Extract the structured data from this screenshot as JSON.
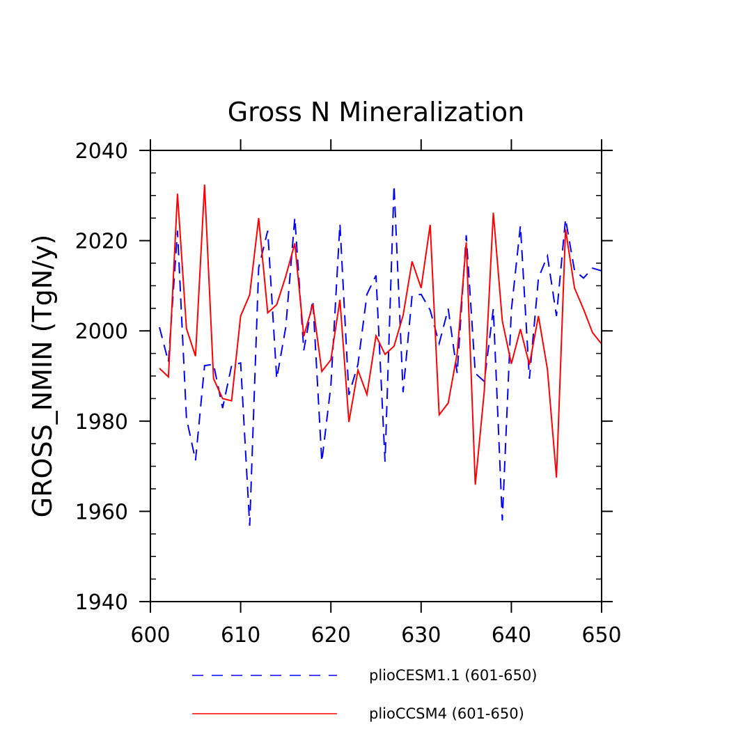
{
  "chart_data": {
    "type": "line",
    "title": "Gross N Mineralization",
    "xlabel": "",
    "ylabel": "GROSS_NMIN   (TgN/y)",
    "xlim": [
      600,
      650
    ],
    "ylim": [
      1940,
      2040
    ],
    "xticks": [
      600,
      610,
      620,
      630,
      640,
      650
    ],
    "yticks": [
      1940,
      1960,
      1980,
      2000,
      2020,
      2040
    ],
    "x": [
      601,
      602,
      603,
      604,
      605,
      606,
      607,
      608,
      609,
      610,
      611,
      612,
      613,
      614,
      615,
      616,
      617,
      618,
      619,
      620,
      621,
      622,
      623,
      624,
      625,
      626,
      627,
      628,
      629,
      630,
      631,
      632,
      633,
      634,
      635,
      636,
      637,
      638,
      639,
      640,
      641,
      642,
      643,
      644,
      645,
      646,
      647,
      648,
      649,
      650
    ],
    "series": [
      {
        "name": "plioCESM1.1 (601-650)",
        "color": "#0000ff",
        "style": "dashed",
        "values": [
          2000.8,
          1993.1,
          2022.2,
          1980.6,
          1971.3,
          1992.3,
          1992.6,
          1982.9,
          1992.3,
          1992.9,
          1956.8,
          2014.0,
          2022.2,
          1989.4,
          2000.8,
          2025.1,
          1995.7,
          2006.8,
          1971.0,
          1987.9,
          2023.7,
          1985.8,
          1992.6,
          2008.1,
          2012.3,
          1971.0,
          2032.3,
          1986.4,
          2007.8,
          2008.1,
          2004.6,
          1997.2,
          2004.9,
          1990.6,
          2021.2,
          1990.6,
          1988.8,
          2004.9,
          1958.0,
          2004.6,
          2023.3,
          1989.4,
          2011.7,
          2016.6,
          2003.3,
          2024.8,
          2013.4,
          2011.7,
          2013.9,
          2013.3
        ]
      },
      {
        "name": "plioCCSM4 (601-650)",
        "color": "#ff0000",
        "style": "solid",
        "values": [
          1991.7,
          1989.8,
          2030.4,
          2000.5,
          1994.4,
          2032.4,
          1989.4,
          1985.0,
          1984.5,
          2003.3,
          2008.0,
          2025.0,
          2004.0,
          2005.8,
          2012.1,
          2019.4,
          1998.8,
          2005.9,
          1991.0,
          1993.6,
          2006.9,
          1979.8,
          1991.3,
          1985.9,
          1998.9,
          1994.8,
          1996.6,
          2003.4,
          2015.4,
          2009.5,
          2023.5,
          1981.4,
          1984.0,
          1995.0,
          2019.6,
          1965.9,
          1986.6,
          2026.2,
          2002.2,
          1992.7,
          2000.4,
          1992.5,
          2003.3,
          1991.5,
          1967.5,
          2022.5,
          2009.5,
          2004.8,
          1999.6,
          1997.1
        ]
      }
    ]
  }
}
